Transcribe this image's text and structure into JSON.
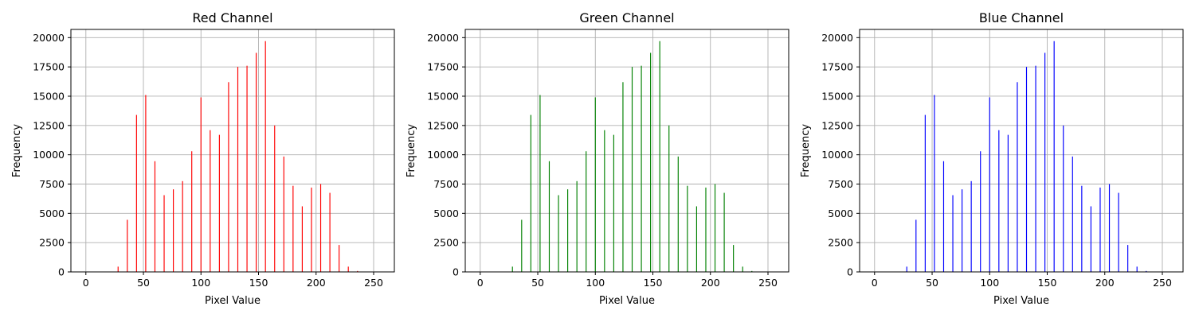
{
  "chart_data": [
    {
      "type": "bar",
      "title": "Red Channel",
      "xlabel": "Pixel Value",
      "ylabel": "Frequency",
      "color": "#ff0000",
      "xlim": [
        -13,
        268
      ],
      "ylim": [
        0,
        20700
      ],
      "xticks": [
        0,
        50,
        100,
        150,
        200,
        250
      ],
      "yticks": [
        0,
        2500,
        5000,
        7500,
        10000,
        12500,
        15000,
        17500,
        20000
      ],
      "grid": true,
      "x": [
        28,
        36,
        44,
        52,
        60,
        68,
        76,
        84,
        92,
        100,
        108,
        116,
        124,
        132,
        140,
        148,
        156,
        164,
        172,
        180,
        188,
        196,
        204,
        212,
        220,
        228,
        236
      ],
      "values": [
        450,
        4450,
        13400,
        15100,
        9450,
        6550,
        7050,
        7750,
        10300,
        14900,
        12100,
        11700,
        16200,
        17500,
        17600,
        18700,
        19700,
        12500,
        9850,
        7350,
        5600,
        7200,
        7500,
        6750,
        2300,
        450,
        80
      ]
    },
    {
      "type": "bar",
      "title": "Green Channel",
      "xlabel": "Pixel Value",
      "ylabel": "Frequency",
      "color": "#008000",
      "xlim": [
        -13,
        268
      ],
      "ylim": [
        0,
        20700
      ],
      "xticks": [
        0,
        50,
        100,
        150,
        200,
        250
      ],
      "yticks": [
        0,
        2500,
        5000,
        7500,
        10000,
        12500,
        15000,
        17500,
        20000
      ],
      "grid": true,
      "x": [
        28,
        36,
        44,
        52,
        60,
        68,
        76,
        84,
        92,
        100,
        108,
        116,
        124,
        132,
        140,
        148,
        156,
        164,
        172,
        180,
        188,
        196,
        204,
        212,
        220,
        228,
        236
      ],
      "values": [
        450,
        4450,
        13400,
        15100,
        9450,
        6550,
        7050,
        7750,
        10300,
        14900,
        12100,
        11700,
        16200,
        17500,
        17600,
        18700,
        19700,
        12500,
        9850,
        7350,
        5600,
        7200,
        7500,
        6750,
        2300,
        450,
        80
      ]
    },
    {
      "type": "bar",
      "title": "Blue Channel",
      "xlabel": "Pixel Value",
      "ylabel": "Frequency",
      "color": "#0000ff",
      "xlim": [
        -13,
        268
      ],
      "ylim": [
        0,
        20700
      ],
      "xticks": [
        0,
        50,
        100,
        150,
        200,
        250
      ],
      "yticks": [
        0,
        2500,
        5000,
        7500,
        10000,
        12500,
        15000,
        17500,
        20000
      ],
      "grid": true,
      "x": [
        28,
        36,
        44,
        52,
        60,
        68,
        76,
        84,
        92,
        100,
        108,
        116,
        124,
        132,
        140,
        148,
        156,
        164,
        172,
        180,
        188,
        196,
        204,
        212,
        220,
        228,
        236
      ],
      "values": [
        450,
        4450,
        13400,
        15100,
        9450,
        6550,
        7050,
        7750,
        10300,
        14900,
        12100,
        11700,
        16200,
        17500,
        17600,
        18700,
        19700,
        12500,
        9850,
        7350,
        5600,
        7200,
        7500,
        6750,
        2300,
        450,
        80
      ]
    }
  ]
}
